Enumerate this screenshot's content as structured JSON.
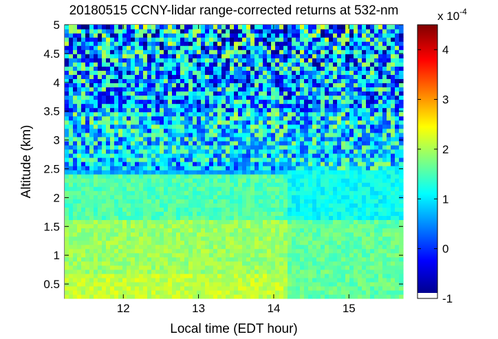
{
  "chart_data": {
    "type": "heatmap",
    "title": "20180515 CCNY-lidar range-corrected returns at 532-nm",
    "xlabel": "Local time (EDT hour)",
    "ylabel": "Altitude (km)",
    "xlim": [
      11.22,
      15.72
    ],
    "ylim": [
      0.25,
      5.0
    ],
    "x_ticks": [
      12,
      13,
      14,
      15
    ],
    "x_tick_labels": [
      "12",
      "13",
      "14",
      "15"
    ],
    "y_ticks": [
      0.5,
      1,
      1.5,
      2,
      2.5,
      3,
      3.5,
      4,
      4.5,
      5
    ],
    "y_tick_labels": [
      "0.5",
      "1",
      "1.5",
      "2",
      "2.5",
      "3",
      "3.5",
      "4",
      "4.5",
      "5"
    ],
    "colorbar": {
      "multiplier_label": "x 10",
      "exponent": "-4",
      "range": [
        -1,
        4.5
      ],
      "ticks": [
        -1,
        0,
        1,
        2,
        3,
        4
      ],
      "tick_labels": [
        "-1",
        "0",
        "1",
        "2",
        "3",
        "4"
      ],
      "colormap": "jet"
    },
    "field_summary": [
      {
        "altitude_km": [
          0.25,
          0.7
        ],
        "time_hours": [
          11.22,
          14.2
        ],
        "value_e-4": 2.1
      },
      {
        "altitude_km": [
          0.7,
          1.6
        ],
        "time_hours": [
          11.22,
          14.2
        ],
        "value_e-4": 1.9
      },
      {
        "altitude_km": [
          1.6,
          2.4
        ],
        "time_hours": [
          11.22,
          14.2
        ],
        "value_e-4": 1.5
      },
      {
        "altitude_km": [
          0.25,
          1.6
        ],
        "time_hours": [
          14.2,
          15.72
        ],
        "value_e-4": 1.6
      },
      {
        "altitude_km": [
          1.6,
          2.6
        ],
        "time_hours": [
          14.2,
          15.72
        ],
        "value_e-4": 1.1
      },
      {
        "altitude_km": [
          2.6,
          3.5
        ],
        "time_hours": [
          11.22,
          15.72
        ],
        "value_e-4": 0.9
      },
      {
        "altitude_km": [
          3.5,
          5.0
        ],
        "time_hours": [
          11.22,
          15.72
        ],
        "value_e-4": 0.6
      }
    ]
  }
}
